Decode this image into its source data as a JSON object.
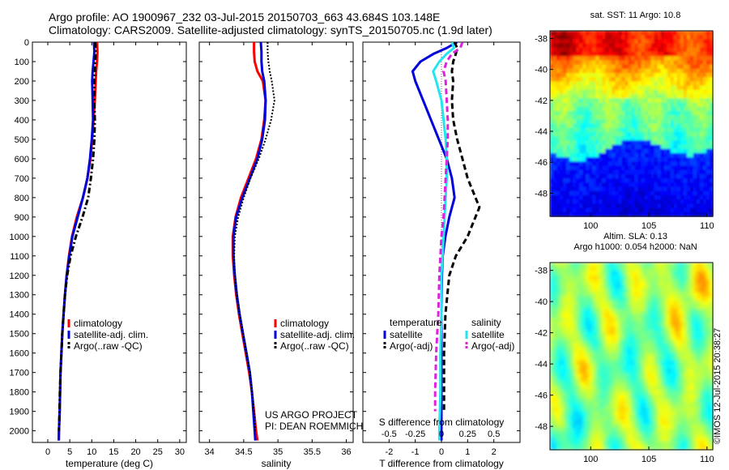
{
  "header": {
    "line1": "Argo profile: AO 1900967_232 03-Jul-2015 20150703_663 43.684S 103.148E",
    "line2": "Climatology: CARS2009. Satellite-adjusted climatology: synTS_20150705.nc (1.9d later)"
  },
  "credit": {
    "line1": "US ARGO PROJECT",
    "line2": "PI: DEAN ROEMMICH"
  },
  "timestamp": "©IMOS 12-Jul-2015 20:38:27",
  "colors": {
    "climatology": "#ff0000",
    "satellite": "#0000dd",
    "argo": "#000000",
    "sal_satellite": "#22e6ee",
    "sal_argo": "#dd22dd"
  },
  "depth_ticks": [
    "0",
    "100",
    "200",
    "300",
    "400",
    "500",
    "600",
    "700",
    "800",
    "900",
    "1000",
    "1100",
    "1200",
    "1300",
    "1400",
    "1500",
    "1600",
    "1700",
    "1800",
    "1900",
    "2000"
  ],
  "chart_data": [
    {
      "type": "line",
      "panel": "temperature",
      "xlabel": "temperature (deg C)",
      "ylabel": "",
      "xlim": [
        -3.5,
        31.5
      ],
      "ylim": [
        2060,
        0
      ],
      "x_ticks": [
        "0",
        "5",
        "10",
        "15",
        "20",
        "25",
        "30"
      ],
      "legend": [
        "climatology",
        "satellite-adj. clim.",
        "Argo(..raw -QC)"
      ],
      "series": [
        {
          "name": "climatology",
          "style": "solid",
          "depth": [
            0,
            50,
            100,
            150,
            200,
            300,
            400,
            500,
            600,
            700,
            800,
            900,
            1000,
            1100,
            1200,
            1300,
            1400,
            1500,
            1600,
            1700,
            1800,
            1900,
            2000,
            2050
          ],
          "values": [
            11.2,
            11.3,
            11.2,
            11.0,
            10.9,
            10.7,
            10.4,
            10.1,
            9.7,
            9.0,
            8.0,
            6.6,
            5.5,
            4.8,
            4.3,
            3.9,
            3.6,
            3.3,
            3.1,
            2.9,
            2.8,
            2.7,
            2.55,
            2.5
          ]
        },
        {
          "name": "satellite-adj. clim.",
          "style": "solid",
          "depth": [
            0,
            50,
            100,
            150,
            200,
            300,
            400,
            500,
            600,
            700,
            800,
            900,
            1000,
            1100,
            1200,
            1300,
            1400,
            1500,
            1600,
            1700,
            1800,
            1900,
            2000,
            2050
          ],
          "values": [
            10.5,
            10.6,
            10.4,
            10.2,
            10.1,
            10.2,
            10.3,
            10.0,
            9.6,
            9.0,
            8.0,
            6.8,
            5.6,
            4.9,
            4.3,
            3.9,
            3.6,
            3.3,
            3.1,
            2.9,
            2.8,
            2.7,
            2.55,
            2.5
          ]
        },
        {
          "name": "Argo(..raw -QC)",
          "style": "dashdot",
          "depth": [
            0,
            50,
            100,
            150,
            200,
            300,
            400,
            500,
            600,
            700,
            800,
            900,
            1000,
            1100,
            1200,
            1300,
            1400,
            1500,
            1600,
            1700,
            1800,
            1900,
            2000
          ],
          "values": [
            10.8,
            10.9,
            10.8,
            10.7,
            10.6,
            10.6,
            10.7,
            10.6,
            10.3,
            9.8,
            9.2,
            7.9,
            6.4,
            5.2,
            4.4,
            3.9,
            3.6,
            3.3,
            3.1,
            2.9,
            2.75,
            2.65,
            2.55
          ]
        }
      ]
    },
    {
      "type": "line",
      "panel": "salinity",
      "xlabel": "salinity",
      "ylabel": "",
      "xlim": [
        33.85,
        36.1
      ],
      "ylim": [
        2060,
        0
      ],
      "x_ticks": [
        "34",
        "34.5",
        "35",
        "35.5",
        "36"
      ],
      "legend": [
        "climatology",
        "satellite-adj. clim.",
        "Argo(..raw -QC)"
      ],
      "series": [
        {
          "name": "climatology",
          "style": "solid",
          "depth": [
            0,
            50,
            100,
            150,
            200,
            300,
            400,
            500,
            600,
            700,
            800,
            900,
            1000,
            1100,
            1200,
            1300,
            1400,
            1500,
            1600,
            1700,
            1800,
            1900,
            2000,
            2050
          ],
          "values": [
            34.65,
            34.65,
            34.66,
            34.7,
            34.78,
            34.82,
            34.8,
            34.76,
            34.68,
            34.57,
            34.46,
            34.38,
            34.34,
            34.34,
            34.36,
            34.39,
            34.43,
            34.48,
            34.53,
            34.58,
            34.62,
            34.65,
            34.68,
            34.7
          ]
        },
        {
          "name": "satellite-adj. clim.",
          "style": "solid",
          "depth": [
            0,
            50,
            100,
            150,
            200,
            300,
            400,
            500,
            600,
            700,
            800,
            900,
            1000,
            1100,
            1200,
            1300,
            1400,
            1500,
            1600,
            1700,
            1800,
            1900,
            2000,
            2050
          ],
          "values": [
            34.75,
            34.76,
            34.76,
            34.77,
            34.8,
            34.82,
            34.81,
            34.77,
            34.7,
            34.59,
            34.48,
            34.39,
            34.35,
            34.35,
            34.37,
            34.4,
            34.44,
            34.49,
            34.54,
            34.59,
            34.62,
            34.64,
            34.66,
            34.67
          ]
        },
        {
          "name": "Argo(..raw -QC)",
          "style": "dotted",
          "depth": [
            0,
            50,
            100,
            150,
            200,
            300,
            400,
            500,
            600,
            700,
            800,
            900,
            1000,
            1100,
            1200,
            1300,
            1400,
            1500,
            1600,
            1700,
            1800,
            1900,
            2000
          ],
          "values": [
            34.85,
            34.85,
            34.86,
            34.88,
            34.91,
            34.95,
            34.9,
            34.82,
            34.72,
            34.6,
            34.5,
            34.42,
            34.37,
            34.36,
            34.37,
            34.4,
            34.44,
            34.49,
            34.54,
            34.59,
            34.62,
            34.65,
            34.67
          ]
        }
      ]
    },
    {
      "type": "line",
      "panel": "difference",
      "xlabel": "T difference from climatology",
      "xlabel_top": "S difference from climatology",
      "ylabel": "",
      "xlim": [
        -3,
        3
      ],
      "ylim": [
        2060,
        0
      ],
      "x_ticks": [
        "-2",
        "-1",
        "0",
        "1",
        "2"
      ],
      "x_ticks_top": [
        "-0.5",
        "-0.25",
        "0",
        "0.25",
        "0.5"
      ],
      "legend_titles": [
        "temperature",
        "salinity"
      ],
      "legend": [
        "satellite",
        "Argo(-adj)",
        "satellite",
        "Argo(-adj)"
      ],
      "series": [
        {
          "name": "satellite",
          "group": "temperature",
          "style": "solid",
          "depth": [
            0,
            30,
            60,
            100,
            150,
            200,
            300,
            400,
            500,
            600,
            700,
            800,
            900,
            1000,
            1100,
            1200,
            1400,
            1600,
            1800,
            2000,
            2050
          ],
          "values": [
            0.6,
            0.2,
            -0.3,
            -0.8,
            -1.1,
            -1.0,
            -0.7,
            -0.4,
            -0.1,
            0.2,
            0.4,
            0.5,
            0.3,
            0.15,
            0.05,
            0.02,
            0.0,
            0.0,
            0.0,
            0.0,
            0.0
          ]
        },
        {
          "name": "Argo(-adj)",
          "group": "temperature",
          "style": "dashed",
          "depth": [
            0,
            30,
            60,
            100,
            150,
            200,
            300,
            400,
            500,
            600,
            700,
            800,
            850,
            900,
            1000,
            1100,
            1200,
            1400,
            1600,
            1800,
            1900
          ],
          "values": [
            0.5,
            0.6,
            0.55,
            0.45,
            0.4,
            0.45,
            0.4,
            0.45,
            0.6,
            0.8,
            1.0,
            1.3,
            1.45,
            1.3,
            1.0,
            0.55,
            0.3,
            0.15,
            0.1,
            0.1,
            0.1
          ]
        },
        {
          "name": "satellite",
          "group": "salinity",
          "style": "solid",
          "depth": [
            0,
            30,
            60,
            100,
            150,
            200,
            300,
            400,
            500,
            600,
            700,
            800,
            900,
            1000,
            1100,
            1200,
            1400,
            1600,
            1800,
            2000,
            2050
          ],
          "values": [
            0.1,
            0.12,
            0.05,
            -0.02,
            -0.08,
            -0.05,
            0.0,
            0.02,
            0.04,
            0.05,
            0.05,
            0.04,
            0.03,
            0.02,
            0.01,
            0.0,
            0.0,
            -0.01,
            -0.01,
            -0.02,
            -0.02
          ]
        },
        {
          "name": "Argo(-adj)",
          "group": "salinity",
          "style": "dashed",
          "depth": [
            0,
            30,
            60,
            100,
            150,
            200,
            300,
            400,
            500,
            600,
            700,
            800,
            900,
            1000,
            1100,
            1200,
            1400,
            1600,
            1800,
            1900
          ],
          "values": [
            0.2,
            0.18,
            0.1,
            0.05,
            0.02,
            0.04,
            0.05,
            0.06,
            0.06,
            0.05,
            0.04,
            0.03,
            0.02,
            0.0,
            -0.01,
            -0.02,
            -0.03,
            -0.05,
            -0.06,
            -0.06
          ]
        }
      ]
    },
    {
      "type": "heatmap",
      "panel": "sst_map",
      "title": "sat. SST: 11 Argo: 10.8",
      "xlim": [
        96.5,
        110.5
      ],
      "ylim": [
        -49.5,
        -37.5
      ],
      "x_ticks": [
        "100",
        "105",
        "110"
      ],
      "y_ticks": [
        "-38",
        "-40",
        "-42",
        "-44",
        "-46",
        "-48"
      ]
    },
    {
      "type": "heatmap",
      "panel": "sla_map",
      "title": "Altim. SLA: 0.13",
      "subtitle": "Argo h1000: 0.054 h2000: NaN",
      "xlim": [
        96.5,
        110.5
      ],
      "ylim": [
        -49.5,
        -37.5
      ],
      "x_ticks": [
        "100",
        "105",
        "110"
      ],
      "y_ticks": [
        "-38",
        "-40",
        "-42",
        "-44",
        "-46",
        "-48"
      ]
    }
  ]
}
